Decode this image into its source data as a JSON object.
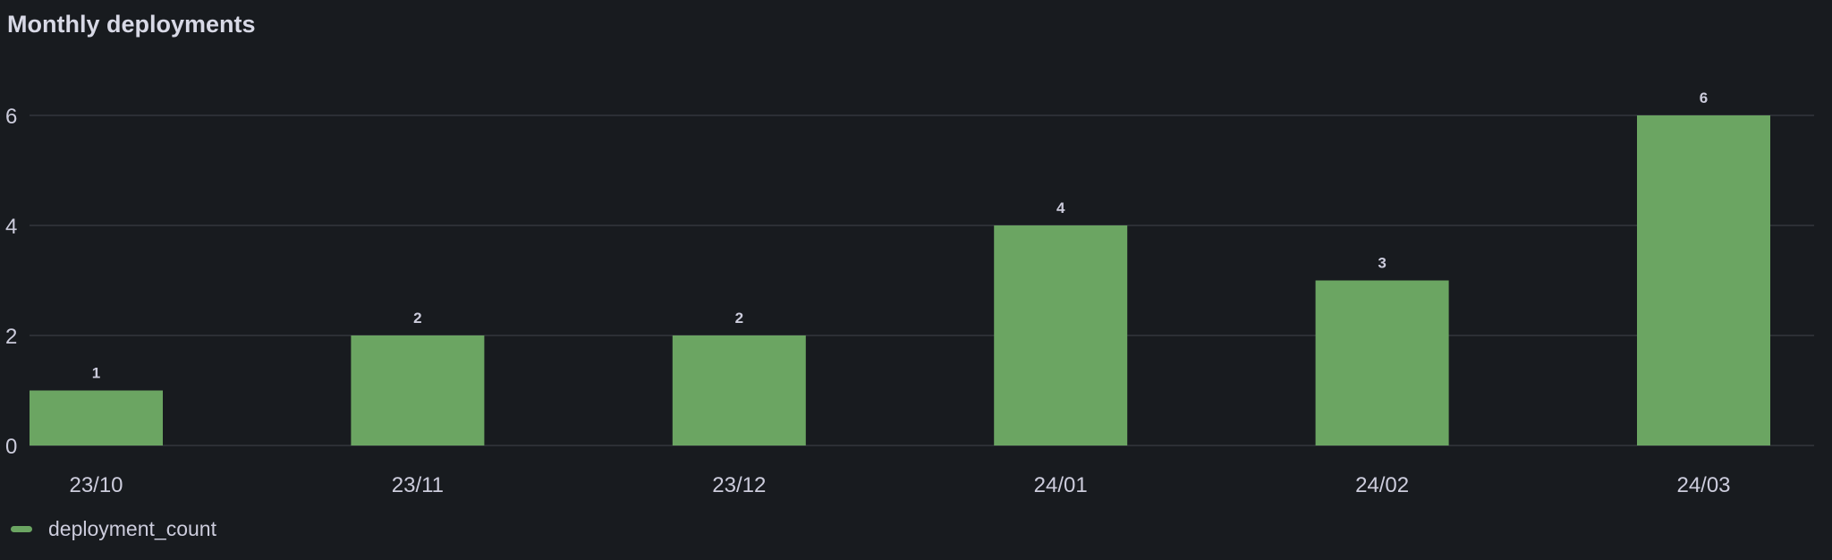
{
  "chart_data": {
    "type": "bar",
    "title": "Monthly deployments",
    "categories": [
      "23/10",
      "23/11",
      "23/12",
      "24/01",
      "24/02",
      "24/03"
    ],
    "series": [
      {
        "name": "deployment_count",
        "values": [
          1,
          2,
          2,
          4,
          3,
          6
        ],
        "color": "#6ba562"
      }
    ],
    "ylim": [
      0,
      6
    ],
    "yticks": [
      0,
      2,
      4,
      6
    ],
    "grid": true,
    "legend_position": "bottom-left",
    "data_labels": true
  },
  "colors": {
    "background": "#181b1f",
    "grid": "#2c2f35",
    "text": "#ccccdc"
  }
}
